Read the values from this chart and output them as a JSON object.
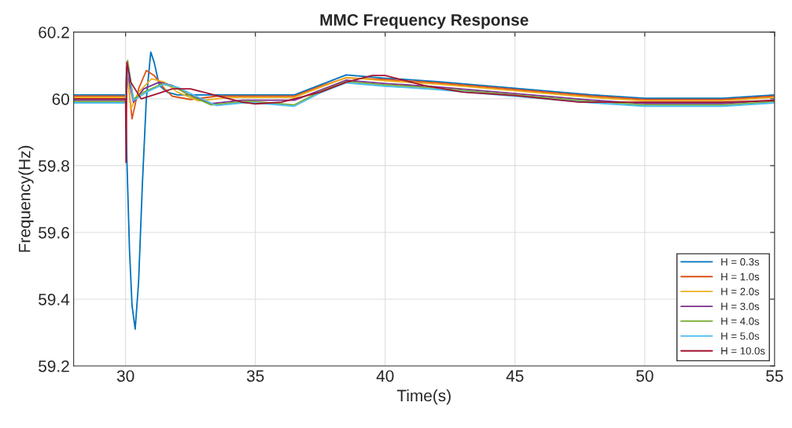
{
  "chart_data": {
    "type": "line",
    "title": "MMC Frequency Response",
    "xlabel": "Time(s)",
    "ylabel": "Frequency(Hz)",
    "xlim": [
      28,
      55
    ],
    "ylim": [
      59.2,
      60.2
    ],
    "xticks": [
      30,
      35,
      40,
      45,
      50,
      55
    ],
    "yticks": [
      59.2,
      59.4,
      59.6,
      59.8,
      60,
      60.2
    ],
    "grid": true,
    "legend": "bottom right",
    "marker": "none",
    "line_style": "solid",
    "series": [
      {
        "name": "H = 0.3s",
        "color": "#0072bd",
        "x": [
          28,
          29,
          30,
          30.05,
          30.15,
          30.25,
          30.37,
          30.5,
          30.65,
          30.8,
          30.97,
          31.1,
          31.3,
          31.6,
          32,
          33,
          34,
          35,
          36,
          36.5,
          37.5,
          38.5,
          40,
          42,
          45,
          48,
          50,
          53,
          55
        ],
        "values": [
          60.012,
          60.012,
          60.012,
          59.82,
          59.55,
          59.38,
          59.31,
          59.45,
          59.75,
          60.0,
          60.14,
          60.11,
          60.04,
          60.02,
          60.012,
          60.012,
          60.012,
          60.012,
          60.012,
          60.012,
          60.042,
          60.072,
          60.062,
          60.052,
          60.032,
          60.012,
          60.002,
          60.002,
          60.012
        ]
      },
      {
        "name": "H = 1.0s",
        "color": "#d95319",
        "x": [
          28,
          30,
          30.05,
          30.25,
          30.5,
          30.8,
          31.1,
          31.5,
          31.8,
          32.5,
          33.5,
          35,
          36.5,
          37.5,
          38.5,
          40,
          42,
          45,
          48,
          50,
          53,
          55
        ],
        "values": [
          60.008,
          60.008,
          60.09,
          59.94,
          60.03,
          60.085,
          60.07,
          60.03,
          60.008,
          59.998,
          60.008,
          60.008,
          60.008,
          60.038,
          60.063,
          60.058,
          60.048,
          60.028,
          60.008,
          59.998,
          59.998,
          60.008
        ]
      },
      {
        "name": "H = 2.0s",
        "color": "#edb120",
        "x": [
          28,
          30,
          30.06,
          30.2,
          30.5,
          31.0,
          31.5,
          32,
          32.8,
          34,
          35,
          36.5,
          37.5,
          38.5,
          40,
          42,
          45,
          48,
          50,
          53,
          55
        ],
        "values": [
          60.004,
          60.004,
          60.1,
          59.97,
          60.02,
          60.06,
          60.05,
          60.02,
          59.994,
          60.004,
          60.004,
          60.004,
          60.034,
          60.064,
          60.054,
          60.044,
          60.024,
          60.004,
          59.994,
          59.994,
          60.004
        ]
      },
      {
        "name": "H = 3.0s",
        "color": "#7e2f8e",
        "x": [
          28,
          30,
          30.04,
          30.3,
          30.7,
          31.3,
          31.8,
          32.5,
          33.3,
          34.5,
          35,
          36.5,
          37.5,
          38.5,
          40,
          42,
          45,
          48,
          50,
          53,
          55
        ],
        "values": [
          59.996,
          59.996,
          60.095,
          59.99,
          60.03,
          60.05,
          60.04,
          60.01,
          59.986,
          59.996,
          59.996,
          59.996,
          60.026,
          60.056,
          60.046,
          60.036,
          60.016,
          59.996,
          59.986,
          59.986,
          59.996
        ]
      },
      {
        "name": "H = 4.0s",
        "color": "#77ac30",
        "x": [
          28,
          30,
          30.08,
          30.3,
          30.7,
          31.4,
          31.9,
          32.6,
          33.3,
          34.5,
          35,
          36.5,
          37.5,
          38.5,
          40,
          42,
          45,
          48,
          50,
          53,
          55
        ],
        "values": [
          59.992,
          59.992,
          60.115,
          60.0,
          60.02,
          60.045,
          60.035,
          60.005,
          59.982,
          59.992,
          59.992,
          59.982,
          60.022,
          60.052,
          60.042,
          60.032,
          60.012,
          59.992,
          59.982,
          59.982,
          59.992
        ]
      },
      {
        "name": "H = 5.0s",
        "color": "#4dbeee",
        "x": [
          28,
          30,
          30.12,
          30.3,
          30.8,
          31.5,
          32,
          32.8,
          33.5,
          34.5,
          35,
          36.5,
          37.5,
          38.5,
          40,
          42,
          45,
          48,
          50,
          53,
          55
        ],
        "values": [
          59.988,
          59.988,
          60.09,
          59.995,
          60.02,
          60.045,
          60.035,
          60.005,
          59.98,
          59.988,
          59.988,
          59.978,
          60.018,
          60.048,
          60.038,
          60.028,
          60.008,
          59.988,
          59.978,
          59.978,
          59.988
        ]
      },
      {
        "name": "H = 10.0s",
        "color": "#a2142f",
        "x": [
          28,
          29,
          30,
          30.02,
          30.05,
          30.2,
          30.6,
          31.2,
          31.8,
          32.5,
          33.5,
          34.5,
          35,
          36,
          36.5,
          37.5,
          38.5,
          39.5,
          40,
          41.5,
          43,
          45,
          47.5,
          50,
          53,
          55
        ],
        "values": [
          60,
          60,
          60,
          59.81,
          60.11,
          60.05,
          60.0,
          60.015,
          60.03,
          60.03,
          60.01,
          59.99,
          59.985,
          59.99,
          60.0,
          60.02,
          60.05,
          60.07,
          60.07,
          60.04,
          60.02,
          60.01,
          59.99,
          59.99,
          59.99,
          59.995
        ]
      }
    ]
  }
}
